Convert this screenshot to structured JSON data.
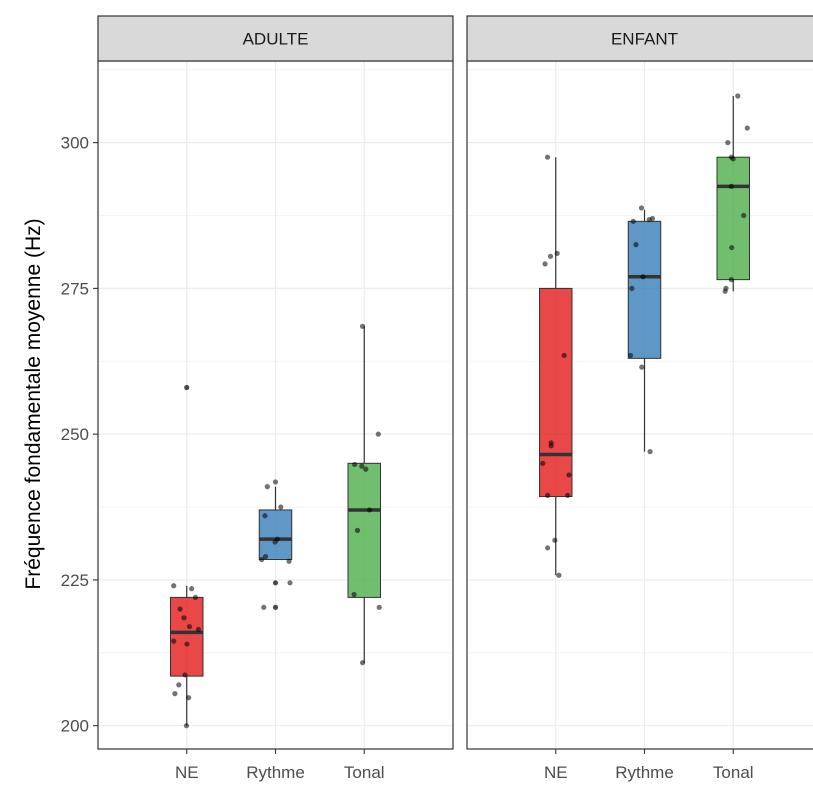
{
  "chart_data": {
    "type": "boxplot",
    "ylabel": "Fréquence fondamentale moyenne (Hz)",
    "xlabel": "",
    "ylim": [
      196,
      314
    ],
    "yticks": [
      200,
      225,
      250,
      275,
      300
    ],
    "categories": [
      "NE",
      "Rythme",
      "Tonal"
    ],
    "colors": {
      "NE": "#e41a1c",
      "Rythme": "#377eb8",
      "Tonal": "#4daf4a"
    },
    "grid": true,
    "panels": [
      {
        "label": "ADULTE",
        "boxes": [
          {
            "category": "NE",
            "q1": 208.5,
            "median": 216,
            "q3": 222,
            "whisker_low": 200,
            "whisker_high": 224,
            "outliers": [
              258
            ],
            "points": [
              200,
              204.8,
              205.5,
              207,
              208.7,
              214,
              214.5,
              216.5,
              217,
              218.5,
              220,
              222,
              223.5,
              224
            ]
          },
          {
            "category": "Rythme",
            "q1": 228.5,
            "median": 232,
            "q3": 237,
            "whisker_low": 228.5,
            "whisker_high": 241,
            "outliers": [
              224.5,
              220.3
            ],
            "points": [
              241.8,
              241,
              237.5,
              236,
              232,
              231.5,
              229,
              228.5,
              228.2,
              224.5,
              220.3
            ]
          },
          {
            "category": "Tonal",
            "q1": 222,
            "median": 237,
            "q3": 245,
            "whisker_low": 210.8,
            "whisker_high": 268.5,
            "outliers": [],
            "points": [
              268.5,
              250,
              244.8,
              244.5,
              244,
              237,
              233.5,
              222.5,
              220.3,
              210.8
            ]
          }
        ]
      },
      {
        "label": "ENFANT",
        "boxes": [
          {
            "category": "NE",
            "q1": 239.3,
            "median": 246.5,
            "q3": 275,
            "whisker_low": 225.8,
            "whisker_high": 297.5,
            "outliers": [],
            "points": [
              297.5,
              281,
              280.5,
              279.2,
              263.5,
              248.5,
              248,
              245,
              243,
              239.5,
              239.5,
              231.8,
              230.5,
              225.8
            ]
          },
          {
            "category": "Rythme",
            "q1": 263,
            "median": 277,
            "q3": 286.5,
            "whisker_low": 247,
            "whisker_high": 288.5,
            "outliers": [],
            "points": [
              288.8,
              287,
              286.8,
              286.5,
              282.5,
              277,
              275,
              263.5,
              261.5,
              247
            ]
          },
          {
            "category": "Tonal",
            "q1": 276.5,
            "median": 292.5,
            "q3": 297.5,
            "whisker_low": 274.5,
            "whisker_high": 308,
            "outliers": [],
            "points": [
              308,
              302.5,
              300,
              297.5,
              297.2,
              292.5,
              287.5,
              282,
              276.5,
              275,
              274.5
            ]
          }
        ]
      }
    ]
  }
}
